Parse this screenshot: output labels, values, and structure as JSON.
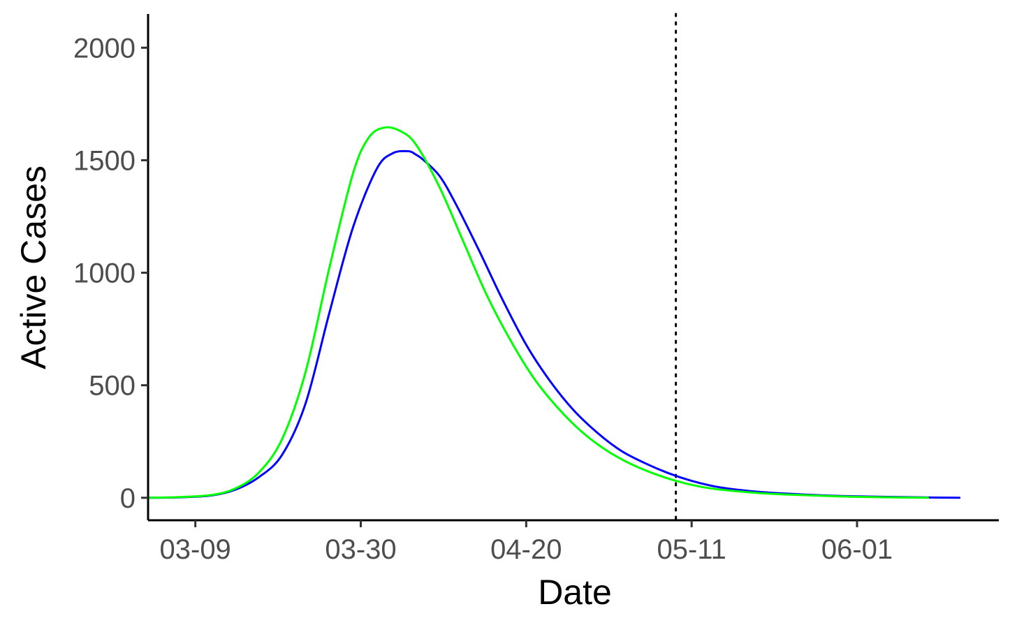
{
  "chart_data": {
    "type": "line",
    "title": "",
    "xlabel": "Date",
    "ylabel": "Active Cases",
    "x_ticks": [
      "03-09",
      "03-30",
      "04-20",
      "05-11",
      "06-01"
    ],
    "y_ticks": [
      "0",
      "500",
      "1000",
      "1500",
      "2000"
    ],
    "y_tick_values": [
      0,
      500,
      1000,
      1500,
      2000
    ],
    "xlim": [
      "2020-03-03",
      "2020-06-19"
    ],
    "ylim": [
      -100,
      2150
    ],
    "grid": false,
    "legend": "none",
    "vline": {
      "x": "2020-05-09",
      "style": "dotted",
      "color": "#000000"
    },
    "series": [
      {
        "color": "#0000ff",
        "x": [
          "2020-03-03",
          "2020-03-07",
          "2020-03-11",
          "2020-03-14",
          "2020-03-17",
          "2020-03-20",
          "2020-03-23",
          "2020-03-26",
          "2020-03-29",
          "2020-04-01",
          "2020-04-03",
          "2020-04-05",
          "2020-04-06",
          "2020-04-07",
          "2020-04-09",
          "2020-04-11",
          "2020-04-14",
          "2020-04-17",
          "2020-04-20",
          "2020-04-23",
          "2020-04-26",
          "2020-04-29",
          "2020-05-02",
          "2020-05-05",
          "2020-05-08",
          "2020-05-11",
          "2020-05-14",
          "2020-05-17",
          "2020-05-20",
          "2020-05-25",
          "2020-05-30",
          "2020-06-05",
          "2020-06-11",
          "2020-06-14"
        ],
        "y": [
          0,
          2,
          10,
          35,
          90,
          190,
          420,
          820,
          1200,
          1460,
          1530,
          1540,
          1525,
          1500,
          1430,
          1310,
          1100,
          880,
          680,
          520,
          390,
          290,
          210,
          155,
          110,
          75,
          50,
          35,
          25,
          15,
          8,
          4,
          1,
          0
        ]
      },
      {
        "color": "#00ff00",
        "x": [
          "2020-03-03",
          "2020-03-07",
          "2020-03-11",
          "2020-03-14",
          "2020-03-17",
          "2020-03-20",
          "2020-03-23",
          "2020-03-26",
          "2020-03-29",
          "2020-03-31",
          "2020-04-02",
          "2020-04-04",
          "2020-04-06",
          "2020-04-09",
          "2020-04-12",
          "2020-04-15",
          "2020-04-18",
          "2020-04-21",
          "2020-04-24",
          "2020-04-27",
          "2020-04-30",
          "2020-05-03",
          "2020-05-06",
          "2020-05-09",
          "2020-05-12",
          "2020-05-15",
          "2020-05-20",
          "2020-05-25",
          "2020-05-30",
          "2020-06-05",
          "2020-06-10"
        ],
        "y": [
          0,
          3,
          12,
          40,
          110,
          260,
          560,
          1020,
          1440,
          1600,
          1645,
          1630,
          1570,
          1380,
          1140,
          900,
          700,
          530,
          400,
          295,
          215,
          155,
          110,
          75,
          50,
          35,
          20,
          12,
          6,
          2,
          0
        ]
      }
    ]
  }
}
